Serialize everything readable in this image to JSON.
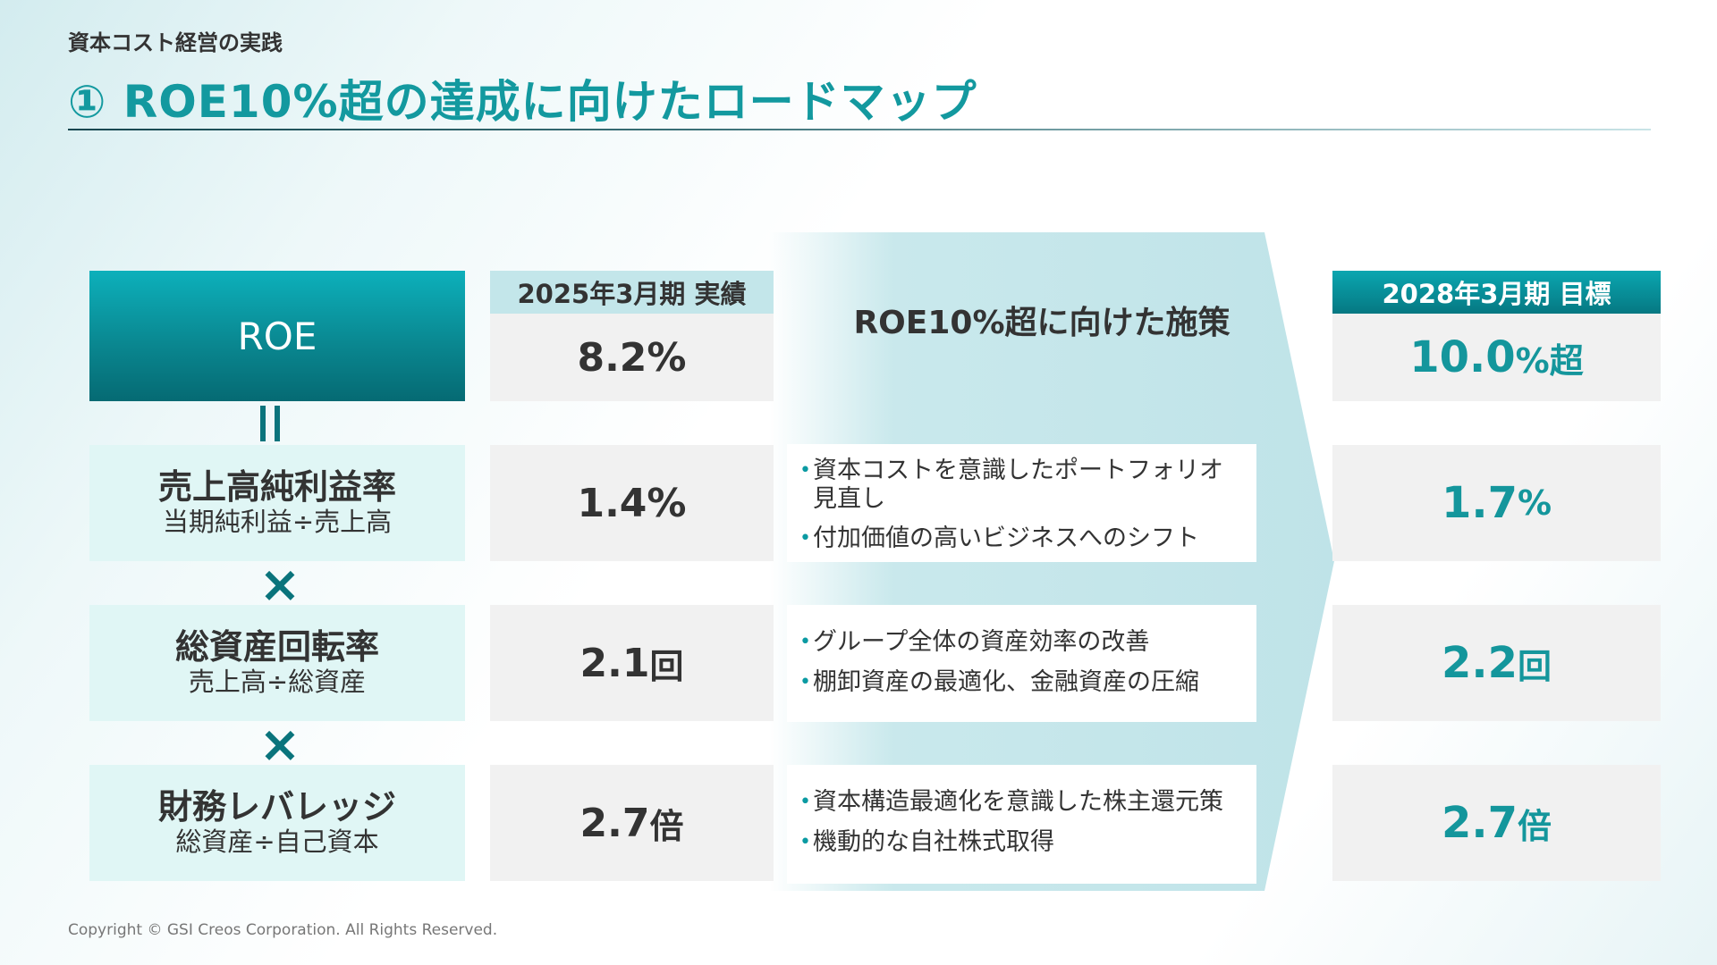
{
  "header": {
    "subtitle": "資本コスト経営の実践",
    "title": "①  ROE10%超の達成に向けたロードマップ"
  },
  "roe": {
    "label": "ROE"
  },
  "current": {
    "header": "2025年3月期 実績",
    "roe": {
      "value": "8.2",
      "unit": "%"
    },
    "margin": {
      "value": "1.4",
      "unit": "%"
    },
    "turnover": {
      "value": "2.1",
      "unit": "回"
    },
    "leverage": {
      "value": "2.7",
      "unit": "倍"
    }
  },
  "measures": {
    "title": "ROE10%超に向けた施策",
    "margin": [
      "資本コストを意識したポートフォリオ見直し",
      "付加価値の高いビジネスへのシフト"
    ],
    "turnover": [
      "グループ全体の資産効率の改善",
      "棚卸資産の最適化、金融資産の圧縮"
    ],
    "leverage": [
      "資本構造最適化を意識した株主還元策",
      "機動的な自社株式取得"
    ]
  },
  "target": {
    "header": "2028年3月期 目標",
    "roe": {
      "value": "10.0",
      "unit": "%超"
    },
    "margin": {
      "value": "1.7",
      "unit": "%"
    },
    "turnover": {
      "value": "2.2",
      "unit": "回"
    },
    "leverage": {
      "value": "2.7",
      "unit": "倍"
    }
  },
  "metrics": {
    "margin": {
      "name": "売上高純利益率",
      "formula": "当期純利益÷売上高"
    },
    "turnover": {
      "name": "総資産回転率",
      "formula": "売上高÷総資産"
    },
    "leverage": {
      "name": "財務レバレッジ",
      "formula": "総資産÷自己資本"
    }
  },
  "operators": {
    "equals": "=",
    "times": "×"
  },
  "footer": {
    "copyright": "Copyright © GSI Creos Corporation. All Rights Reserved."
  },
  "colors": {
    "accent": "#13999f",
    "dark_teal": "#0a747c",
    "light_teal": "#e0f6f5",
    "band": "#c3e6ea"
  }
}
